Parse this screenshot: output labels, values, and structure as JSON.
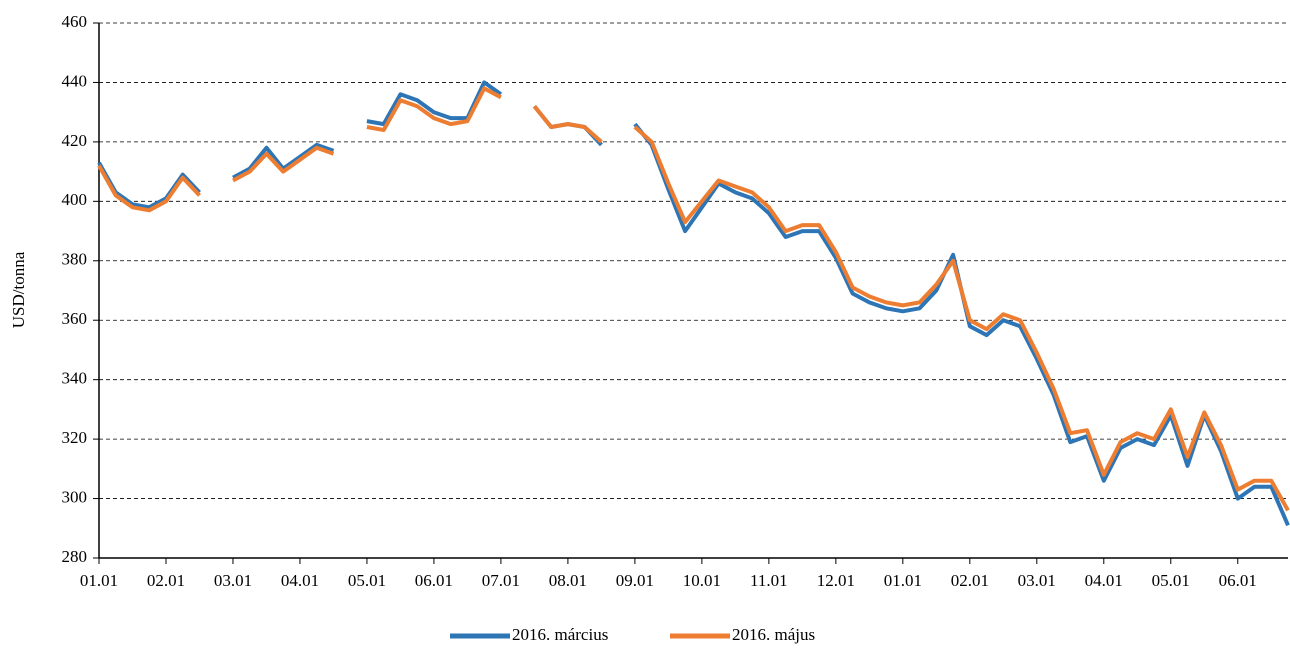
{
  "chart_data": {
    "type": "line",
    "y_label": "USD/tonna",
    "categories": [
      "01.01",
      null,
      null,
      null,
      "02.01",
      null,
      null,
      null,
      "03.01",
      null,
      null,
      null,
      "04.01",
      null,
      null,
      null,
      "05.01",
      null,
      null,
      null,
      "06.01",
      null,
      null,
      null,
      "07.01",
      null,
      null,
      null,
      "08.01",
      null,
      null,
      null,
      "09.01",
      null,
      null,
      null,
      "10.01",
      null,
      null,
      null,
      "11.01",
      null,
      null,
      null,
      "12.01",
      null,
      null,
      null,
      "01.01",
      null,
      null,
      null,
      "02.01",
      null,
      null,
      null,
      "03.01",
      null,
      null,
      null,
      "04.01",
      null,
      null,
      null,
      "05.01",
      null,
      null,
      null,
      "06.01",
      null,
      null,
      null
    ],
    "series": [
      {
        "name": "2016. március",
        "color": "#2e75b6",
        "values": [
          413,
          403,
          399,
          398,
          401,
          409,
          403,
          null,
          408,
          411,
          418,
          411,
          415,
          419,
          417,
          null,
          427,
          426,
          436,
          434,
          430,
          428,
          428,
          440,
          436,
          null,
          432,
          425,
          426,
          425,
          419,
          null,
          426,
          419,
          404,
          390,
          398,
          406,
          403,
          401,
          396,
          388,
          390,
          390,
          381,
          369,
          366,
          364,
          363,
          364,
          370,
          382,
          358,
          355,
          360,
          358,
          347,
          335,
          319,
          321,
          306,
          317,
          320,
          318,
          328,
          311,
          328,
          316,
          300,
          304,
          304,
          291
        ]
      },
      {
        "name": "2016. május",
        "color": "#ed7d31",
        "values": [
          412,
          402,
          398,
          397,
          400,
          408,
          402,
          null,
          407,
          410,
          416,
          410,
          414,
          418,
          416,
          null,
          425,
          424,
          434,
          432,
          428,
          426,
          427,
          438,
          435,
          null,
          432,
          425,
          426,
          425,
          420,
          null,
          425,
          420,
          406,
          393,
          400,
          407,
          405,
          403,
          398,
          390,
          392,
          392,
          383,
          371,
          368,
          366,
          365,
          366,
          372,
          380,
          360,
          357,
          362,
          360,
          349,
          337,
          322,
          323,
          308,
          319,
          322,
          320,
          330,
          314,
          329,
          318,
          303,
          306,
          306,
          296
        ]
      }
    ],
    "ylim": [
      280,
      460
    ],
    "yticks": [
      280,
      300,
      320,
      340,
      360,
      380,
      400,
      420,
      440,
      460
    ],
    "grid": true,
    "legend": "bottom"
  }
}
